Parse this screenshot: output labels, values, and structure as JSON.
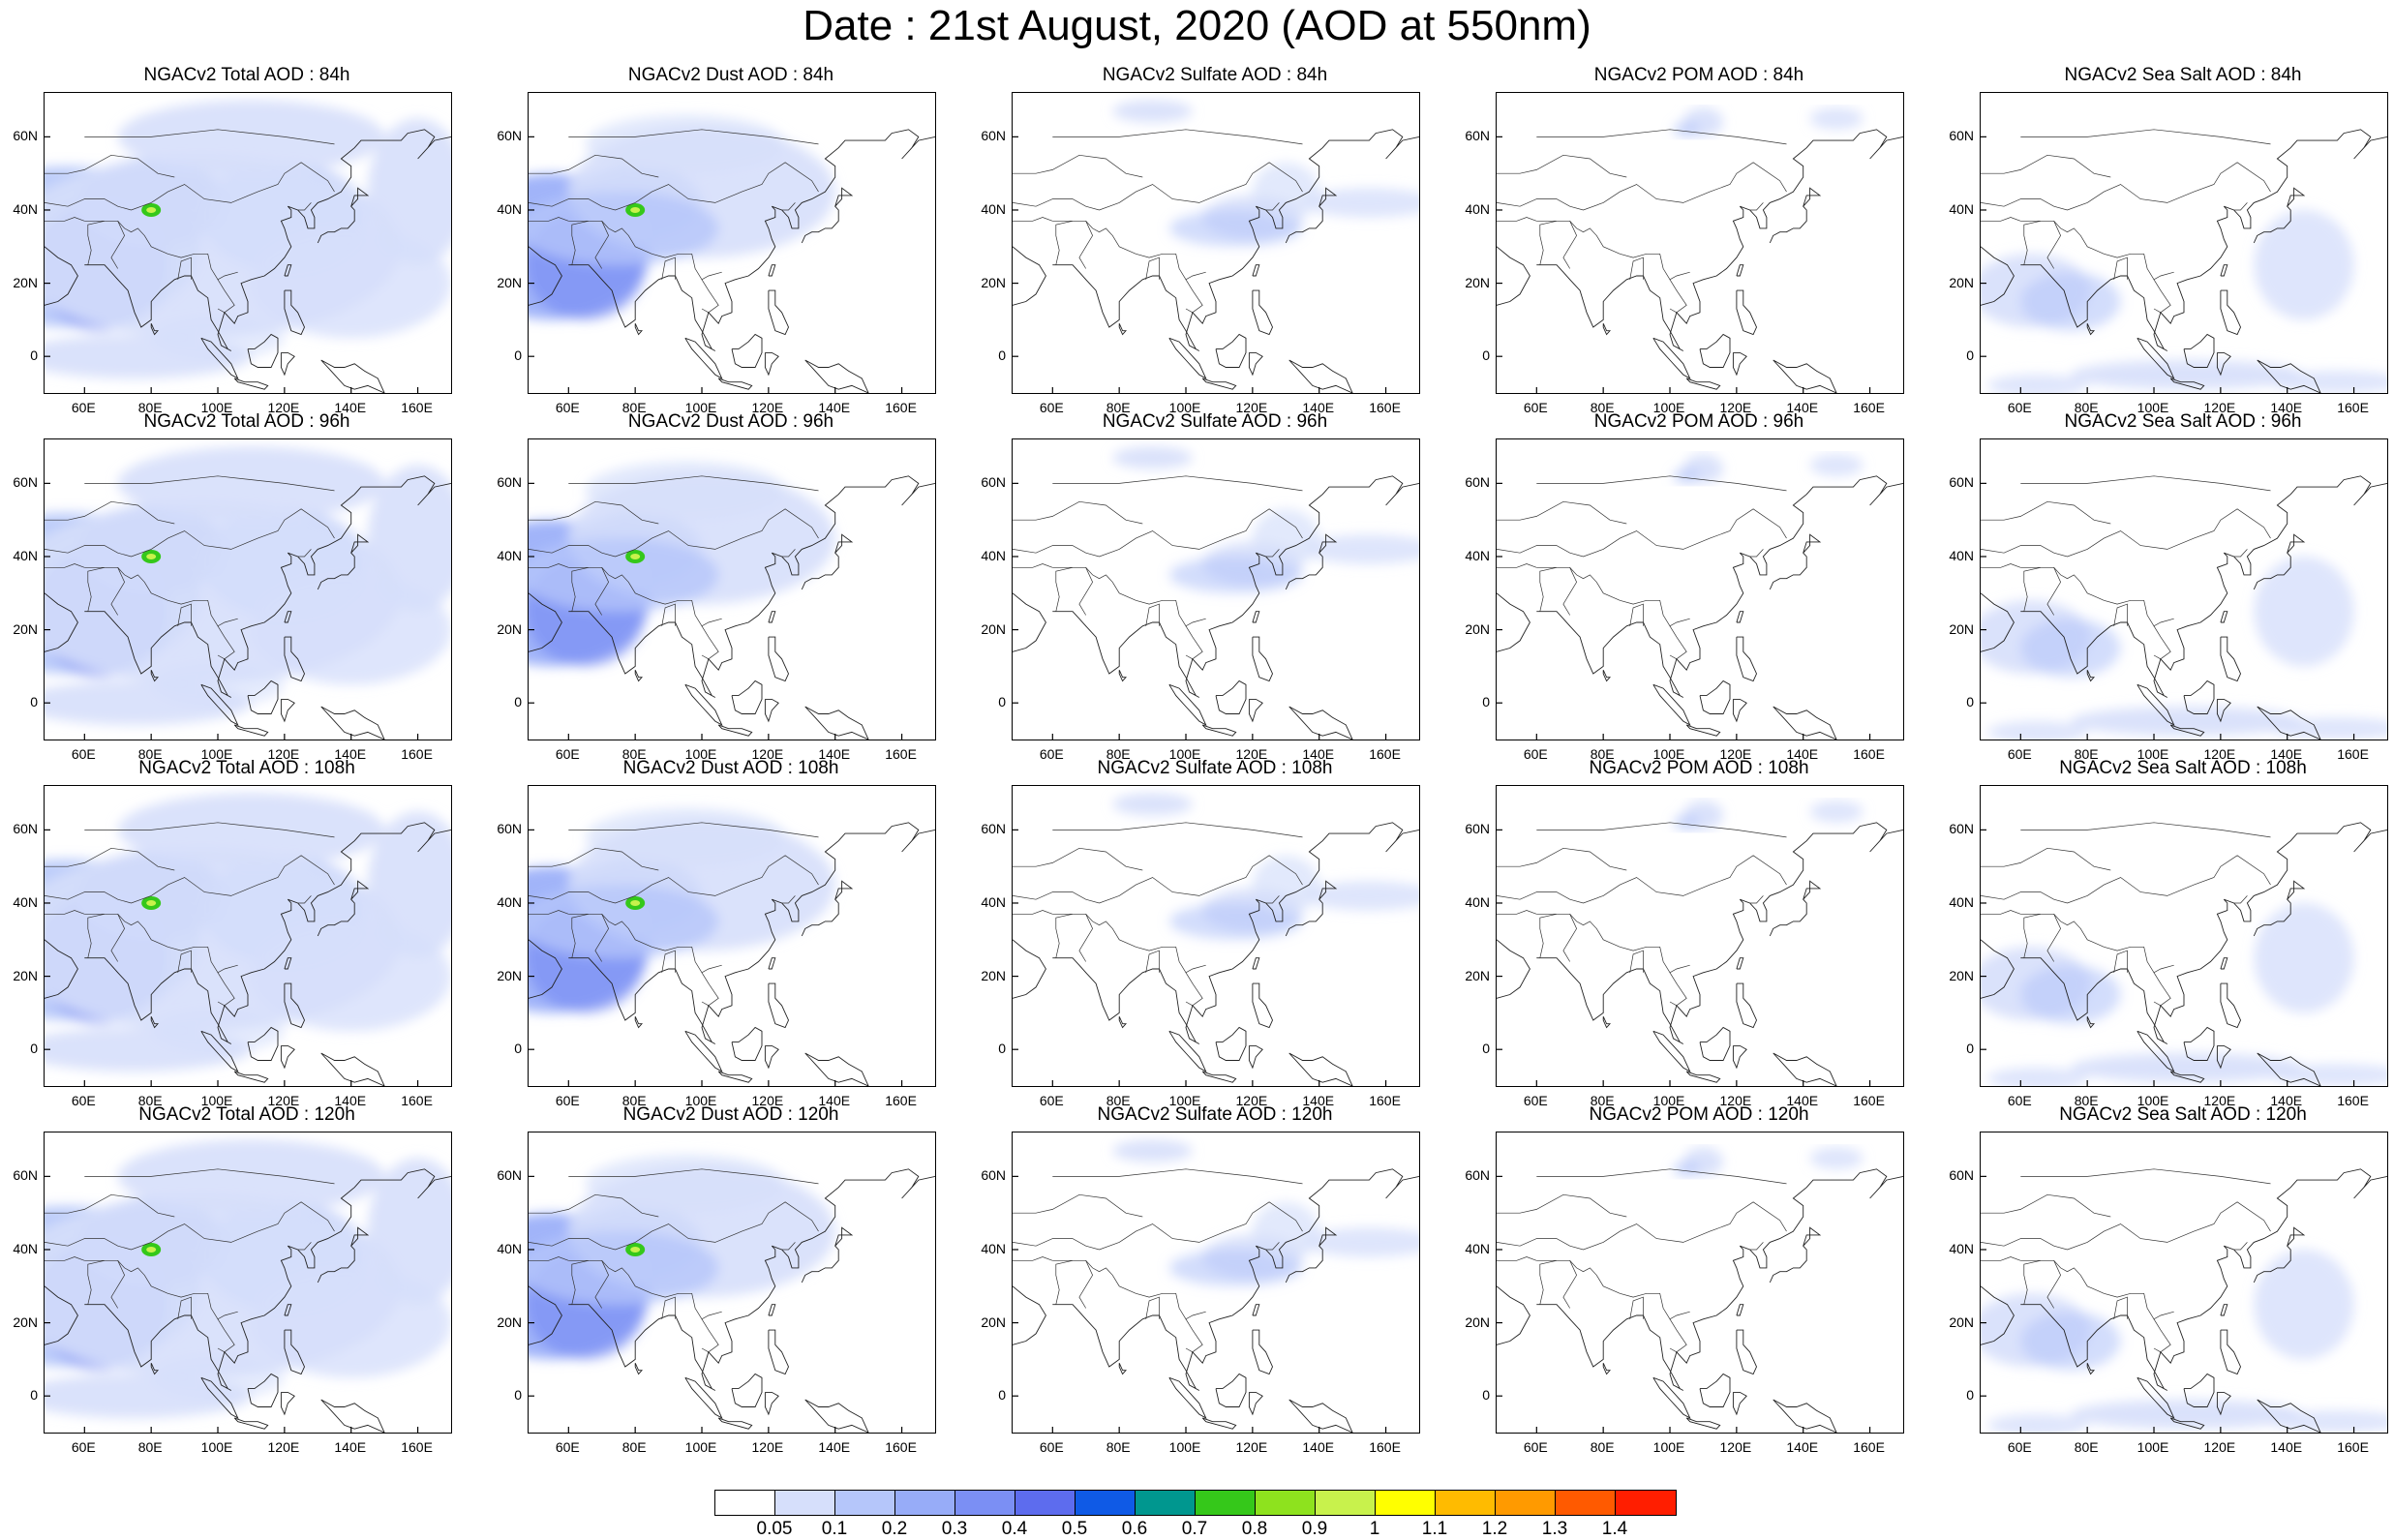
{
  "title": "Date : 21st August, 2020 (AOD at 550nm)",
  "x_ticks": [
    "60E",
    "80E",
    "100E",
    "120E",
    "140E",
    "160E"
  ],
  "y_ticks": [
    "60N",
    "40N",
    "20N",
    "0"
  ],
  "panels": [
    [
      "NGACv2 Total AOD : 84h",
      "NGACv2 Dust AOD : 84h",
      "NGACv2 Sulfate AOD : 84h",
      "NGACv2 POM AOD : 84h",
      "NGACv2 Sea Salt AOD : 84h"
    ],
    [
      "NGACv2 Total AOD : 96h",
      "NGACv2 Dust AOD : 96h",
      "NGACv2 Sulfate AOD : 96h",
      "NGACv2 POM AOD : 96h",
      "NGACv2 Sea Salt AOD : 96h"
    ],
    [
      "NGACv2 Total AOD : 108h",
      "NGACv2 Dust AOD : 108h",
      "NGACv2 Sulfate AOD : 108h",
      "NGACv2 POM AOD : 108h",
      "NGACv2 Sea Salt AOD : 108h"
    ],
    [
      "NGACv2 Total AOD : 120h",
      "NGACv2 Dust AOD : 120h",
      "NGACv2 Sulfate AOD : 120h",
      "NGACv2 POM AOD : 120h",
      "NGACv2 Sea Salt  AOD : 120h"
    ]
  ],
  "colorbar": {
    "labels": [
      "0.05",
      "0.1",
      "0.2",
      "0.3",
      "0.4",
      "0.5",
      "0.6",
      "0.7",
      "0.8",
      "0.9",
      "1",
      "1.1",
      "1.2",
      "1.3",
      "1.4"
    ],
    "colors": [
      "#ffffff",
      "#d6dffb",
      "#b5c6fa",
      "#97acf8",
      "#7b8ff4",
      "#5d6cee",
      "#0f5ae6",
      "#00978f",
      "#35c81a",
      "#8ee21e",
      "#c8f24c",
      "#ffff00",
      "#ffbb00",
      "#ff9a00",
      "#ff5a00",
      "#ff1e00"
    ]
  }
}
